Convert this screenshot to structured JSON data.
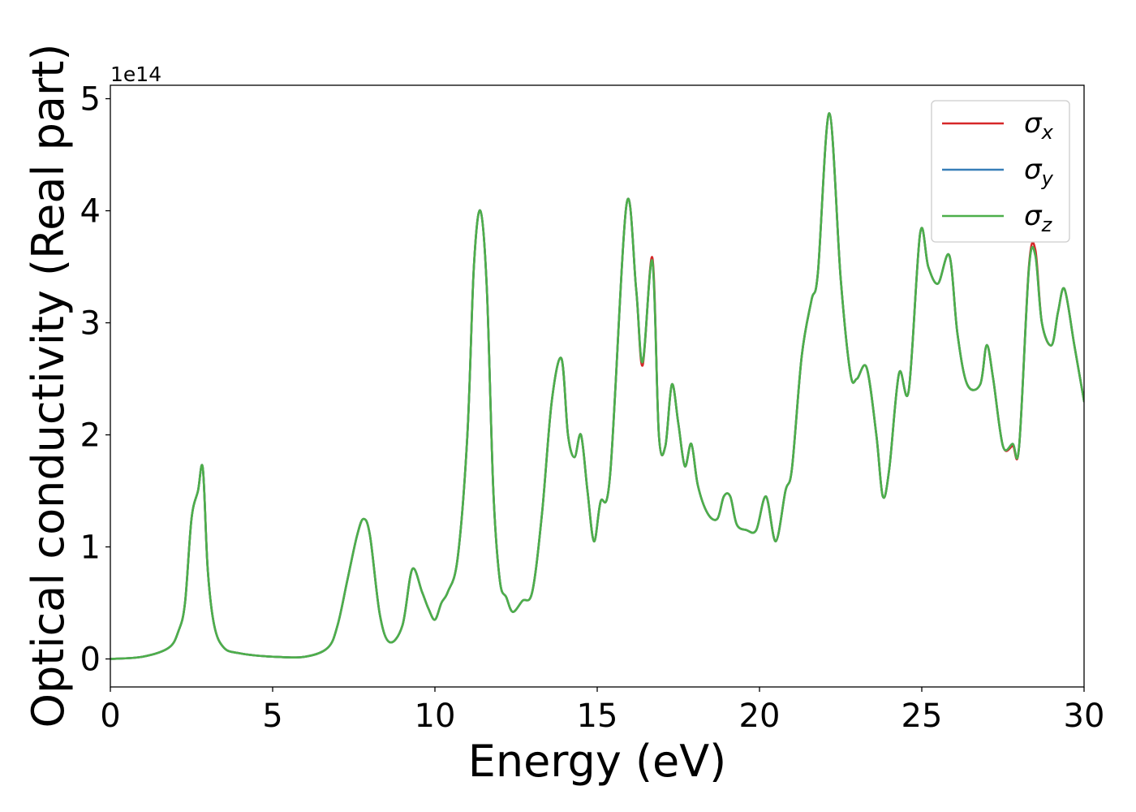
{
  "chart_data": {
    "type": "line",
    "xlabel": "Energy (eV)",
    "ylabel": "Optical conductivity (Real part)",
    "offset_text": "1e14",
    "xlim": [
      0,
      30
    ],
    "ylim": [
      -0.25,
      5.12
    ],
    "y_scale_factor": 100000000000000.0,
    "x_ticks": [
      0,
      5,
      10,
      15,
      20,
      25,
      30
    ],
    "x_tick_labels": [
      "0",
      "5",
      "10",
      "15",
      "20",
      "25",
      "30"
    ],
    "y_ticks": [
      0,
      1,
      2,
      3,
      4,
      5
    ],
    "y_tick_labels": [
      "0",
      "1",
      "2",
      "3",
      "4",
      "5"
    ],
    "legend_placement": "top-right",
    "grid": false,
    "series": [
      {
        "name": "σ_x",
        "legend_symbol": "σ",
        "legend_sub": "x",
        "color": "#d62728",
        "x": [
          0,
          1,
          1.8,
          2.1,
          2.3,
          2.5,
          2.7,
          2.85,
          3.0,
          3.2,
          3.5,
          4,
          5,
          6,
          6.7,
          7.0,
          7.3,
          7.6,
          7.8,
          8.0,
          8.3,
          8.6,
          9.0,
          9.3,
          9.6,
          9.8,
          10.0,
          10.2,
          10.4,
          10.7,
          11.0,
          11.2,
          11.4,
          11.6,
          11.8,
          12.0,
          12.2,
          12.4,
          12.7,
          13.0,
          13.3,
          13.6,
          13.9,
          14.1,
          14.3,
          14.5,
          14.7,
          14.9,
          15.1,
          15.4,
          15.9,
          16.2,
          16.4,
          16.7,
          16.9,
          17.1,
          17.3,
          17.5,
          17.7,
          17.9,
          18.1,
          18.4,
          18.7,
          18.9,
          19.1,
          19.3,
          19.6,
          19.9,
          20.2,
          20.5,
          20.8,
          21.0,
          21.3,
          21.6,
          21.8,
          22.15,
          22.5,
          22.8,
          23.0,
          23.3,
          23.6,
          23.8,
          24.0,
          24.3,
          24.6,
          24.95,
          25.2,
          25.5,
          25.85,
          26.1,
          26.4,
          26.8,
          27.0,
          27.2,
          27.5,
          27.8,
          28.0,
          28.3,
          28.5,
          28.7,
          29.0,
          29.2,
          29.4,
          29.7,
          30
        ],
        "y": [
          0,
          0.02,
          0.1,
          0.25,
          0.5,
          1.25,
          1.5,
          1.7,
          0.8,
          0.3,
          0.1,
          0.05,
          0.02,
          0.02,
          0.1,
          0.3,
          0.7,
          1.1,
          1.25,
          1.1,
          0.4,
          0.15,
          0.3,
          0.8,
          0.6,
          0.45,
          0.35,
          0.5,
          0.6,
          0.9,
          2.0,
          3.5,
          4.0,
          3.3,
          1.5,
          0.7,
          0.55,
          0.42,
          0.52,
          0.6,
          1.3,
          2.3,
          2.68,
          2.0,
          1.8,
          2.0,
          1.5,
          1.05,
          1.4,
          1.65,
          4.05,
          3.3,
          2.62,
          3.58,
          2.0,
          1.9,
          2.45,
          2.1,
          1.72,
          1.92,
          1.55,
          1.3,
          1.25,
          1.45,
          1.45,
          1.2,
          1.15,
          1.15,
          1.45,
          1.05,
          1.5,
          1.7,
          2.7,
          3.2,
          3.45,
          4.87,
          3.4,
          2.55,
          2.5,
          2.6,
          2.0,
          1.45,
          1.7,
          2.55,
          2.4,
          3.8,
          3.5,
          3.35,
          3.6,
          2.9,
          2.45,
          2.45,
          2.8,
          2.5,
          1.9,
          1.9,
          1.9,
          3.5,
          3.65,
          3.0,
          2.8,
          3.1,
          3.3,
          2.8,
          2.3
        ]
      },
      {
        "name": "σ_y",
        "legend_symbol": "σ",
        "legend_sub": "y",
        "color": "#377eb8",
        "x": [
          0,
          1,
          1.8,
          2.1,
          2.3,
          2.5,
          2.7,
          2.85,
          3.0,
          3.2,
          3.5,
          4,
          5,
          6,
          6.7,
          7.0,
          7.3,
          7.6,
          7.8,
          8.0,
          8.3,
          8.6,
          9.0,
          9.3,
          9.6,
          9.8,
          10.0,
          10.2,
          10.4,
          10.7,
          11.0,
          11.2,
          11.4,
          11.6,
          11.8,
          12.0,
          12.2,
          12.4,
          12.7,
          13.0,
          13.3,
          13.6,
          13.9,
          14.1,
          14.3,
          14.5,
          14.7,
          14.9,
          15.1,
          15.4,
          15.9,
          16.2,
          16.4,
          16.7,
          16.9,
          17.1,
          17.3,
          17.5,
          17.7,
          17.9,
          18.1,
          18.4,
          18.7,
          18.9,
          19.1,
          19.3,
          19.6,
          19.9,
          20.2,
          20.5,
          20.8,
          21.0,
          21.3,
          21.6,
          21.8,
          22.15,
          22.5,
          22.8,
          23.0,
          23.3,
          23.6,
          23.8,
          24.0,
          24.3,
          24.6,
          24.95,
          25.2,
          25.5,
          25.85,
          26.1,
          26.4,
          26.8,
          27.0,
          27.2,
          27.5,
          27.8,
          28.0,
          28.3,
          28.5,
          28.7,
          29.0,
          29.2,
          29.4,
          29.7,
          30
        ],
        "y": [
          0,
          0.02,
          0.1,
          0.25,
          0.5,
          1.25,
          1.5,
          1.7,
          0.8,
          0.3,
          0.1,
          0.05,
          0.02,
          0.02,
          0.1,
          0.3,
          0.7,
          1.1,
          1.25,
          1.1,
          0.4,
          0.15,
          0.3,
          0.8,
          0.6,
          0.45,
          0.35,
          0.5,
          0.6,
          0.9,
          2.0,
          3.5,
          4.0,
          3.3,
          1.5,
          0.7,
          0.55,
          0.42,
          0.52,
          0.6,
          1.3,
          2.3,
          2.68,
          2.0,
          1.8,
          2.0,
          1.5,
          1.05,
          1.4,
          1.65,
          4.05,
          3.3,
          2.65,
          3.55,
          2.0,
          1.9,
          2.45,
          2.1,
          1.72,
          1.92,
          1.55,
          1.3,
          1.25,
          1.45,
          1.45,
          1.2,
          1.15,
          1.15,
          1.45,
          1.05,
          1.5,
          1.7,
          2.7,
          3.2,
          3.45,
          4.87,
          3.4,
          2.55,
          2.5,
          2.6,
          2.0,
          1.45,
          1.7,
          2.55,
          2.4,
          3.8,
          3.5,
          3.35,
          3.6,
          2.9,
          2.45,
          2.45,
          2.8,
          2.5,
          1.9,
          1.92,
          1.9,
          3.48,
          3.6,
          3.0,
          2.8,
          3.1,
          3.3,
          2.8,
          2.3
        ]
      },
      {
        "name": "σ_z",
        "legend_symbol": "σ",
        "legend_sub": "z",
        "color": "#4daf4a",
        "x": [
          0,
          1,
          1.8,
          2.1,
          2.3,
          2.5,
          2.7,
          2.85,
          3.0,
          3.2,
          3.5,
          4,
          5,
          6,
          6.7,
          7.0,
          7.3,
          7.6,
          7.8,
          8.0,
          8.3,
          8.6,
          9.0,
          9.3,
          9.6,
          9.8,
          10.0,
          10.2,
          10.4,
          10.7,
          11.0,
          11.2,
          11.4,
          11.6,
          11.8,
          12.0,
          12.2,
          12.4,
          12.7,
          13.0,
          13.3,
          13.6,
          13.9,
          14.1,
          14.3,
          14.5,
          14.7,
          14.9,
          15.1,
          15.4,
          15.9,
          16.2,
          16.4,
          16.7,
          16.9,
          17.1,
          17.3,
          17.5,
          17.7,
          17.9,
          18.1,
          18.4,
          18.7,
          18.9,
          19.1,
          19.3,
          19.6,
          19.9,
          20.2,
          20.5,
          20.8,
          21.0,
          21.3,
          21.6,
          21.8,
          22.15,
          22.5,
          22.8,
          23.0,
          23.3,
          23.6,
          23.8,
          24.0,
          24.3,
          24.6,
          24.95,
          25.2,
          25.5,
          25.85,
          26.1,
          26.4,
          26.8,
          27.0,
          27.2,
          27.5,
          27.8,
          28.0,
          28.3,
          28.5,
          28.7,
          29.0,
          29.2,
          29.4,
          29.7,
          30
        ],
        "y": [
          0,
          0.02,
          0.1,
          0.25,
          0.5,
          1.25,
          1.5,
          1.7,
          0.8,
          0.3,
          0.1,
          0.05,
          0.02,
          0.02,
          0.1,
          0.3,
          0.7,
          1.1,
          1.25,
          1.1,
          0.4,
          0.15,
          0.3,
          0.8,
          0.6,
          0.45,
          0.35,
          0.5,
          0.6,
          0.9,
          2.0,
          3.5,
          4.0,
          3.3,
          1.5,
          0.7,
          0.55,
          0.42,
          0.52,
          0.6,
          1.3,
          2.3,
          2.68,
          2.0,
          1.8,
          2.0,
          1.5,
          1.05,
          1.4,
          1.65,
          4.05,
          3.3,
          2.65,
          3.55,
          2.0,
          1.9,
          2.45,
          2.1,
          1.72,
          1.92,
          1.55,
          1.3,
          1.25,
          1.45,
          1.45,
          1.2,
          1.15,
          1.15,
          1.45,
          1.05,
          1.5,
          1.7,
          2.7,
          3.2,
          3.45,
          4.87,
          3.4,
          2.55,
          2.5,
          2.6,
          2.0,
          1.45,
          1.7,
          2.55,
          2.4,
          3.8,
          3.5,
          3.35,
          3.6,
          2.9,
          2.45,
          2.45,
          2.8,
          2.5,
          1.9,
          1.92,
          1.9,
          3.48,
          3.6,
          3.0,
          2.8,
          3.1,
          3.3,
          2.8,
          2.3
        ]
      }
    ]
  }
}
